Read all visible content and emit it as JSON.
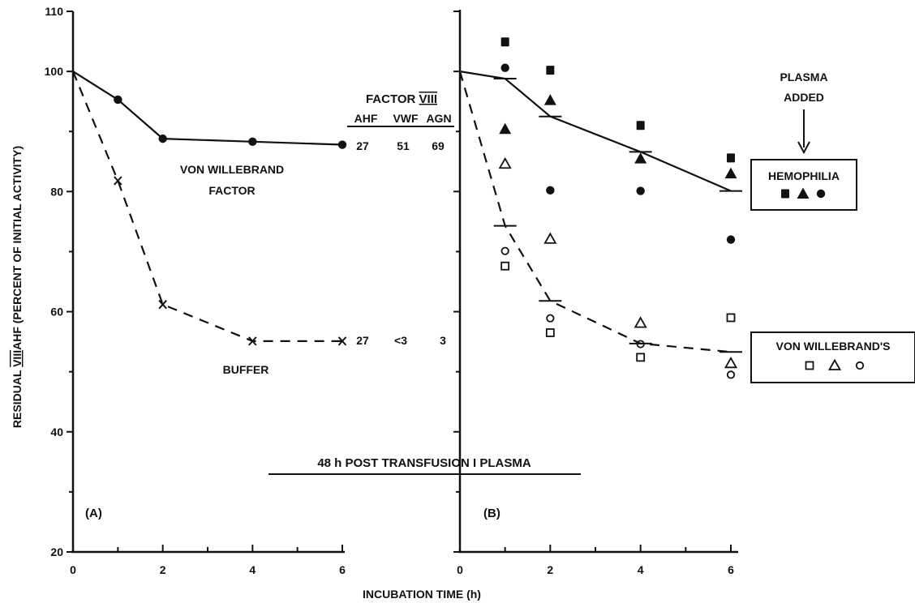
{
  "chart_data": {
    "type": "scatter",
    "ylabel_parts": [
      "RESIDUAL ",
      "VIII",
      "AHF (PERCENT OF INITIAL ACTIVITY)"
    ],
    "xlabel": "INCUBATION TIME (h)",
    "ylim": [
      20,
      110
    ],
    "xlim": [
      0,
      6
    ],
    "y_ticks": [
      "20",
      "40",
      "60",
      "80",
      "100",
      "110"
    ],
    "x_ticks": [
      "0",
      "2",
      "4",
      "6"
    ],
    "caption": "48 h POST TRANSFUSION I PLASMA",
    "panels": [
      {
        "id": "A",
        "panel_label": "(A)",
        "series": [
          {
            "name": "VON WILLEBRAND FACTOR",
            "label_lines": [
              "VON WILLEBRAND",
              "FACTOR"
            ],
            "line_style": "solid",
            "marker": "filled-circle",
            "points": [
              [
                0,
                100
              ],
              [
                1,
                95.3
              ],
              [
                2,
                88.8
              ],
              [
                4,
                88.3
              ],
              [
                6,
                87.8
              ]
            ]
          },
          {
            "name": "BUFFER",
            "label_lines": [
              "BUFFER"
            ],
            "line_style": "dashed",
            "marker": "x",
            "points": [
              [
                0,
                100
              ],
              [
                1,
                81.8
              ],
              [
                2,
                61.2
              ],
              [
                4,
                55.1
              ],
              [
                6,
                55.1
              ]
            ]
          }
        ],
        "factor_table": {
          "title_parts": [
            "FACTOR ",
            "VIII"
          ],
          "columns": [
            "AHF",
            "VWF",
            "AGN"
          ],
          "rows": [
            {
              "series": "VON WILLEBRAND FACTOR",
              "values": [
                "27",
                "51",
                "69"
              ]
            },
            {
              "series": "BUFFER",
              "values": [
                "27",
                "<3",
                "3"
              ]
            }
          ]
        }
      },
      {
        "id": "B",
        "panel_label": "(B)",
        "annotation_lines": [
          "PLASMA",
          "ADDED"
        ],
        "groups": [
          {
            "name": "HEMOPHILIA",
            "line_style": "solid",
            "line_points": [
              [
                0,
                100
              ],
              [
                1,
                98.8
              ],
              [
                2,
                92.5
              ],
              [
                4,
                86.6
              ],
              [
                6,
                80.1
              ]
            ],
            "markers": [
              {
                "shape": "filled-square",
                "points": [
                  [
                    1,
                    104.9
                  ],
                  [
                    2,
                    100.2
                  ],
                  [
                    4,
                    91.0
                  ],
                  [
                    6,
                    85.6
                  ]
                ]
              },
              {
                "shape": "filled-triangle",
                "points": [
                  [
                    1,
                    90.4
                  ],
                  [
                    2,
                    95.2
                  ],
                  [
                    4,
                    85.5
                  ],
                  [
                    6,
                    83.0
                  ]
                ]
              },
              {
                "shape": "filled-circle",
                "points": [
                  [
                    1,
                    100.6
                  ],
                  [
                    2,
                    80.2
                  ],
                  [
                    4,
                    80.1
                  ],
                  [
                    6,
                    72.0
                  ]
                ]
              }
            ]
          },
          {
            "name": "VON WILLEBRAND'S",
            "line_style": "dashed",
            "line_points": [
              [
                0,
                100
              ],
              [
                1,
                74.3
              ],
              [
                2,
                61.8
              ],
              [
                4,
                54.7
              ],
              [
                6,
                53.3
              ]
            ],
            "markers": [
              {
                "shape": "open-square",
                "points": [
                  [
                    1,
                    67.6
                  ],
                  [
                    2,
                    56.5
                  ],
                  [
                    4,
                    52.4
                  ],
                  [
                    6,
                    59.0
                  ]
                ]
              },
              {
                "shape": "open-triangle",
                "points": [
                  [
                    1,
                    84.6
                  ],
                  [
                    2,
                    72.1
                  ],
                  [
                    4,
                    58.1
                  ],
                  [
                    6,
                    51.4
                  ]
                ]
              },
              {
                "shape": "open-circle",
                "points": [
                  [
                    1,
                    70.1
                  ],
                  [
                    2,
                    58.9
                  ],
                  [
                    4,
                    54.6
                  ],
                  [
                    6,
                    49.5
                  ]
                ]
              }
            ]
          }
        ]
      }
    ]
  }
}
